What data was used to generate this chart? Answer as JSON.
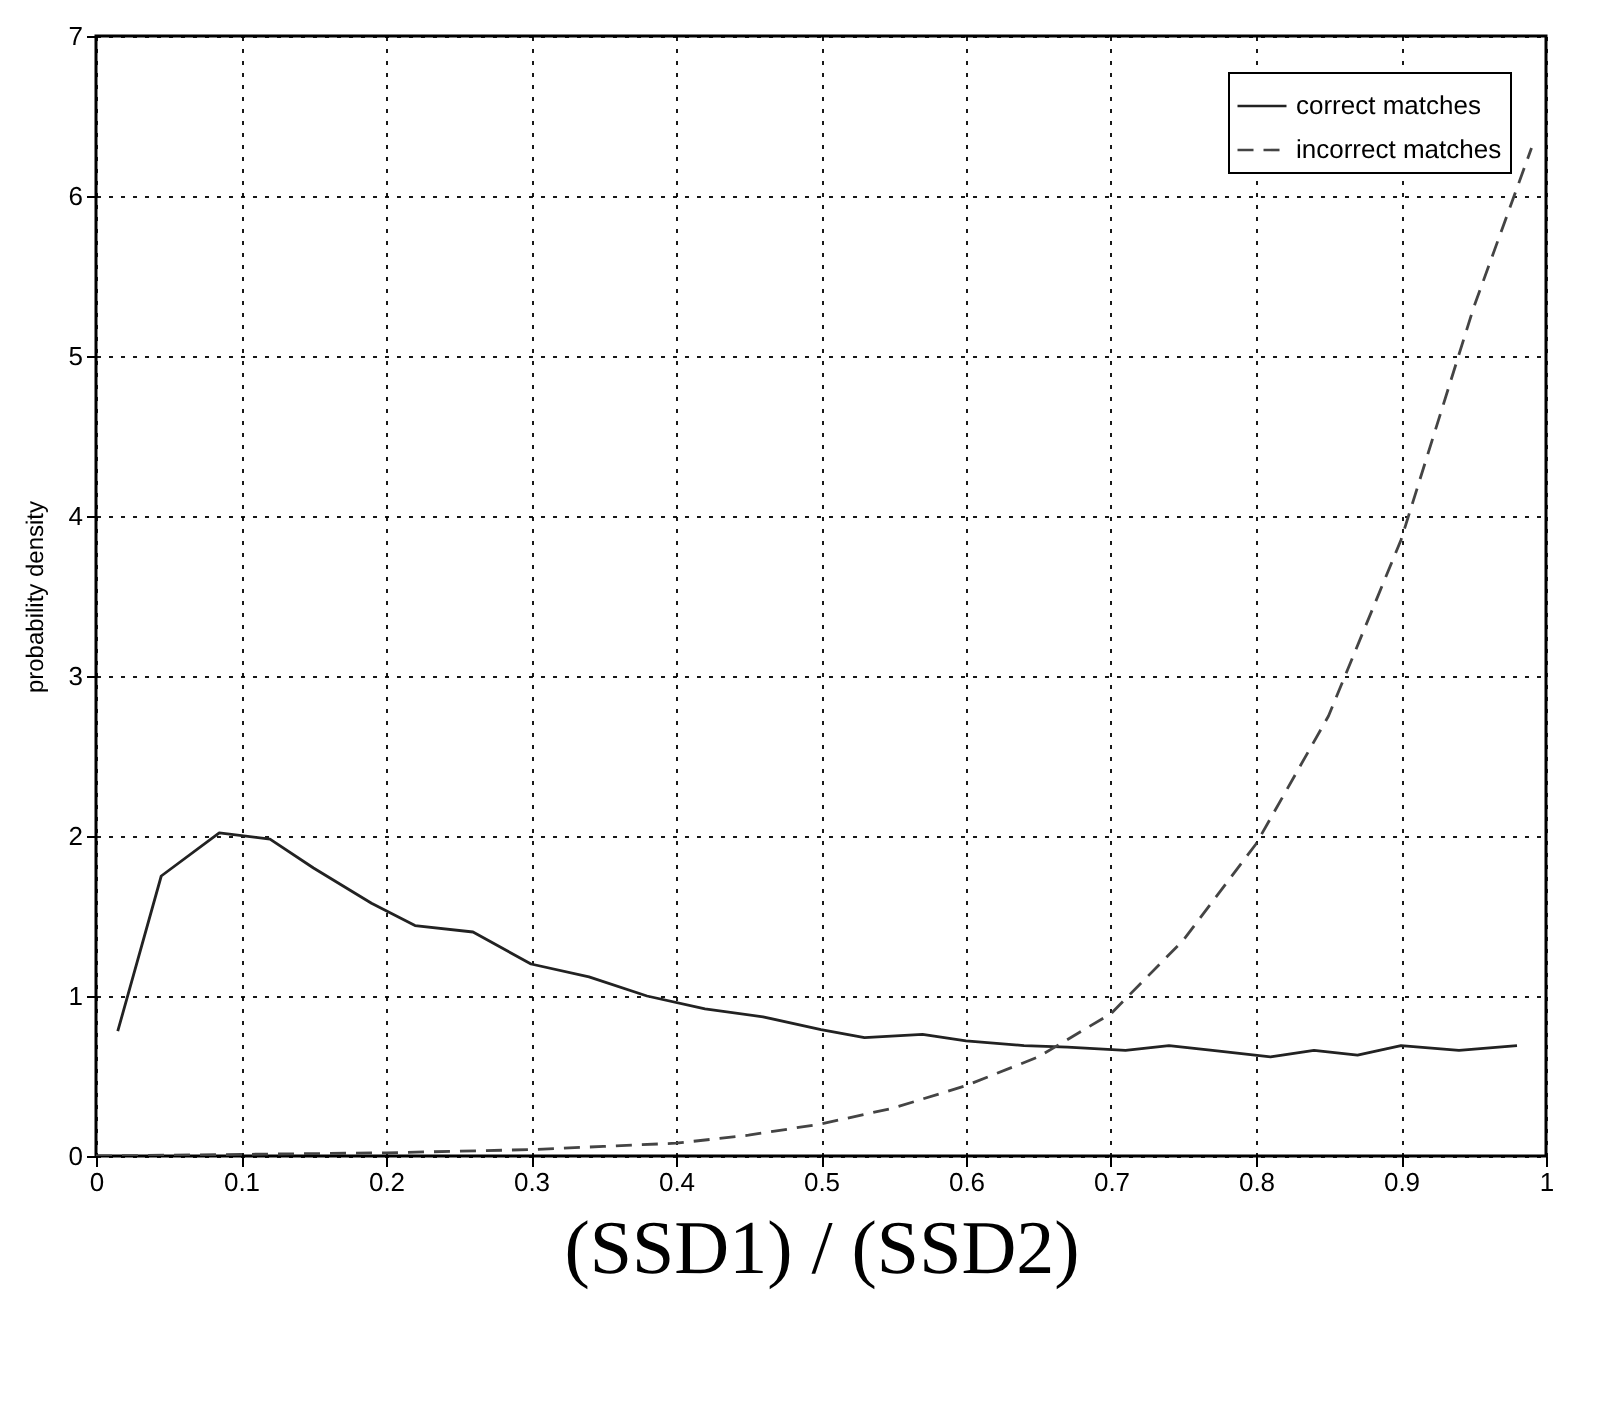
{
  "chart_data": {
    "type": "line",
    "xlabel": "(SSD1) / (SSD2)",
    "ylabel": "probability density",
    "xlim": [
      0,
      1
    ],
    "ylim": [
      0,
      7
    ],
    "xticks": [
      0,
      0.1,
      0.2,
      0.3,
      0.4,
      0.5,
      0.6,
      0.7,
      0.8,
      0.9,
      1
    ],
    "yticks": [
      0,
      1,
      2,
      3,
      4,
      5,
      6,
      7
    ],
    "grid": true,
    "legend": "top right",
    "series": [
      {
        "name": "correct matches",
        "color": "#222222",
        "line_style": "solid",
        "x": [
          0.015,
          0.045,
          0.085,
          0.12,
          0.15,
          0.19,
          0.22,
          0.26,
          0.3,
          0.34,
          0.38,
          0.42,
          0.46,
          0.5,
          0.53,
          0.57,
          0.6,
          0.64,
          0.67,
          0.71,
          0.74,
          0.77,
          0.81,
          0.84,
          0.87,
          0.9,
          0.94,
          0.98
        ],
        "values": [
          0.78,
          1.75,
          2.02,
          1.98,
          1.8,
          1.58,
          1.44,
          1.4,
          1.2,
          1.12,
          1.0,
          0.92,
          0.87,
          0.79,
          0.74,
          0.76,
          0.72,
          0.69,
          0.68,
          0.66,
          0.69,
          0.66,
          0.62,
          0.66,
          0.63,
          0.69,
          0.66,
          0.69
        ]
      },
      {
        "name": "incorrect matches",
        "color": "#444444",
        "line_style": "dashed",
        "x": [
          0,
          0.1,
          0.2,
          0.3,
          0.35,
          0.4,
          0.45,
          0.5,
          0.55,
          0.6,
          0.65,
          0.7,
          0.75,
          0.8,
          0.85,
          0.9,
          0.95,
          0.99
        ],
        "values": [
          0,
          0.01,
          0.02,
          0.04,
          0.06,
          0.08,
          0.13,
          0.2,
          0.3,
          0.44,
          0.62,
          0.89,
          1.35,
          1.95,
          2.75,
          3.85,
          5.3,
          6.3
        ]
      }
    ]
  }
}
